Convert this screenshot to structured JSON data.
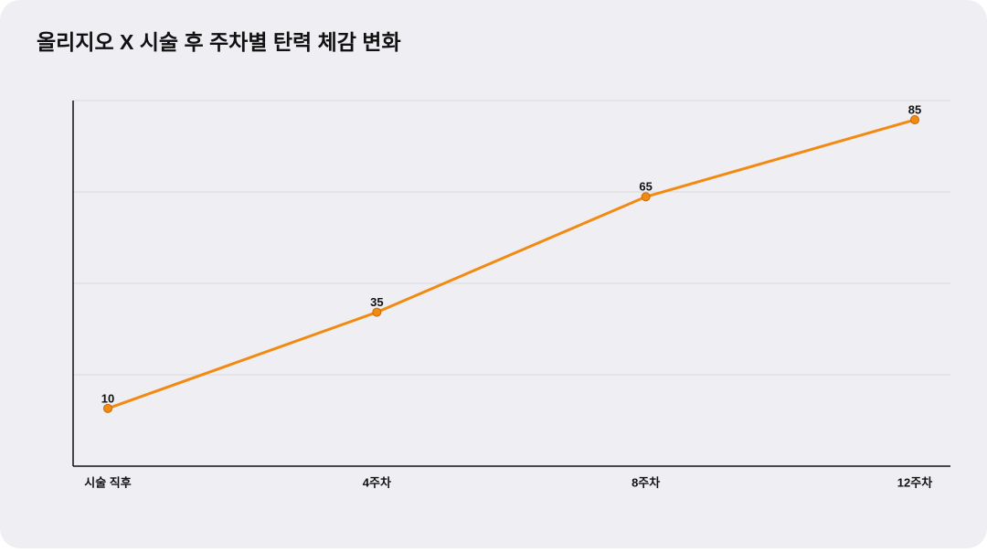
{
  "chart_data": {
    "type": "line",
    "title": "올리지오 X 시술 후 주차별 탄력 체감 변화",
    "categories": [
      "시술 직후",
      "4주차",
      "8주차",
      "12주차"
    ],
    "values": [
      10,
      35,
      65,
      85
    ],
    "color": "#f28a12",
    "ylim": [
      -5,
      90
    ],
    "grid": true
  }
}
